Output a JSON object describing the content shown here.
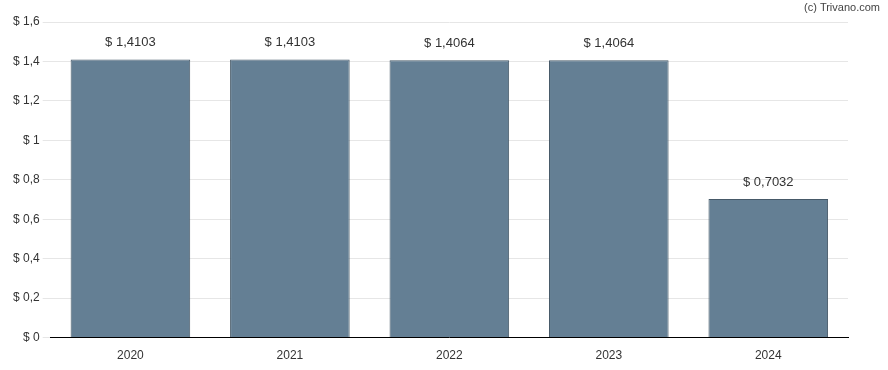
{
  "chart_data": {
    "type": "bar",
    "categories": [
      "2020",
      "2021",
      "2022",
      "2023",
      "2024"
    ],
    "values": [
      1.4103,
      1.4103,
      1.4064,
      1.4064,
      0.7032
    ],
    "value_labels": [
      "$ 1,4103",
      "$ 1,4103",
      "$ 1,4064",
      "$ 1,4064",
      "$ 0,7032"
    ],
    "data_labels": true,
    "color": "#647f94",
    "ylim": [
      0,
      1.6
    ],
    "yticks": [
      {
        "value": 0,
        "label": "$ 0"
      },
      {
        "value": 0.2,
        "label": "$ 0,2"
      },
      {
        "value": 0.4,
        "label": "$ 0,4"
      },
      {
        "value": 0.6,
        "label": "$ 0,6"
      },
      {
        "value": 0.8,
        "label": "$ 0,8"
      },
      {
        "value": 1,
        "label": "$ 1"
      },
      {
        "value": 1.2,
        "label": "$ 1,2"
      },
      {
        "value": 1.4,
        "label": "$ 1,4"
      },
      {
        "value": 1.6,
        "label": "$ 1,6"
      }
    ],
    "grid": true,
    "annotations": [
      "(c) Trivano.com"
    ]
  }
}
